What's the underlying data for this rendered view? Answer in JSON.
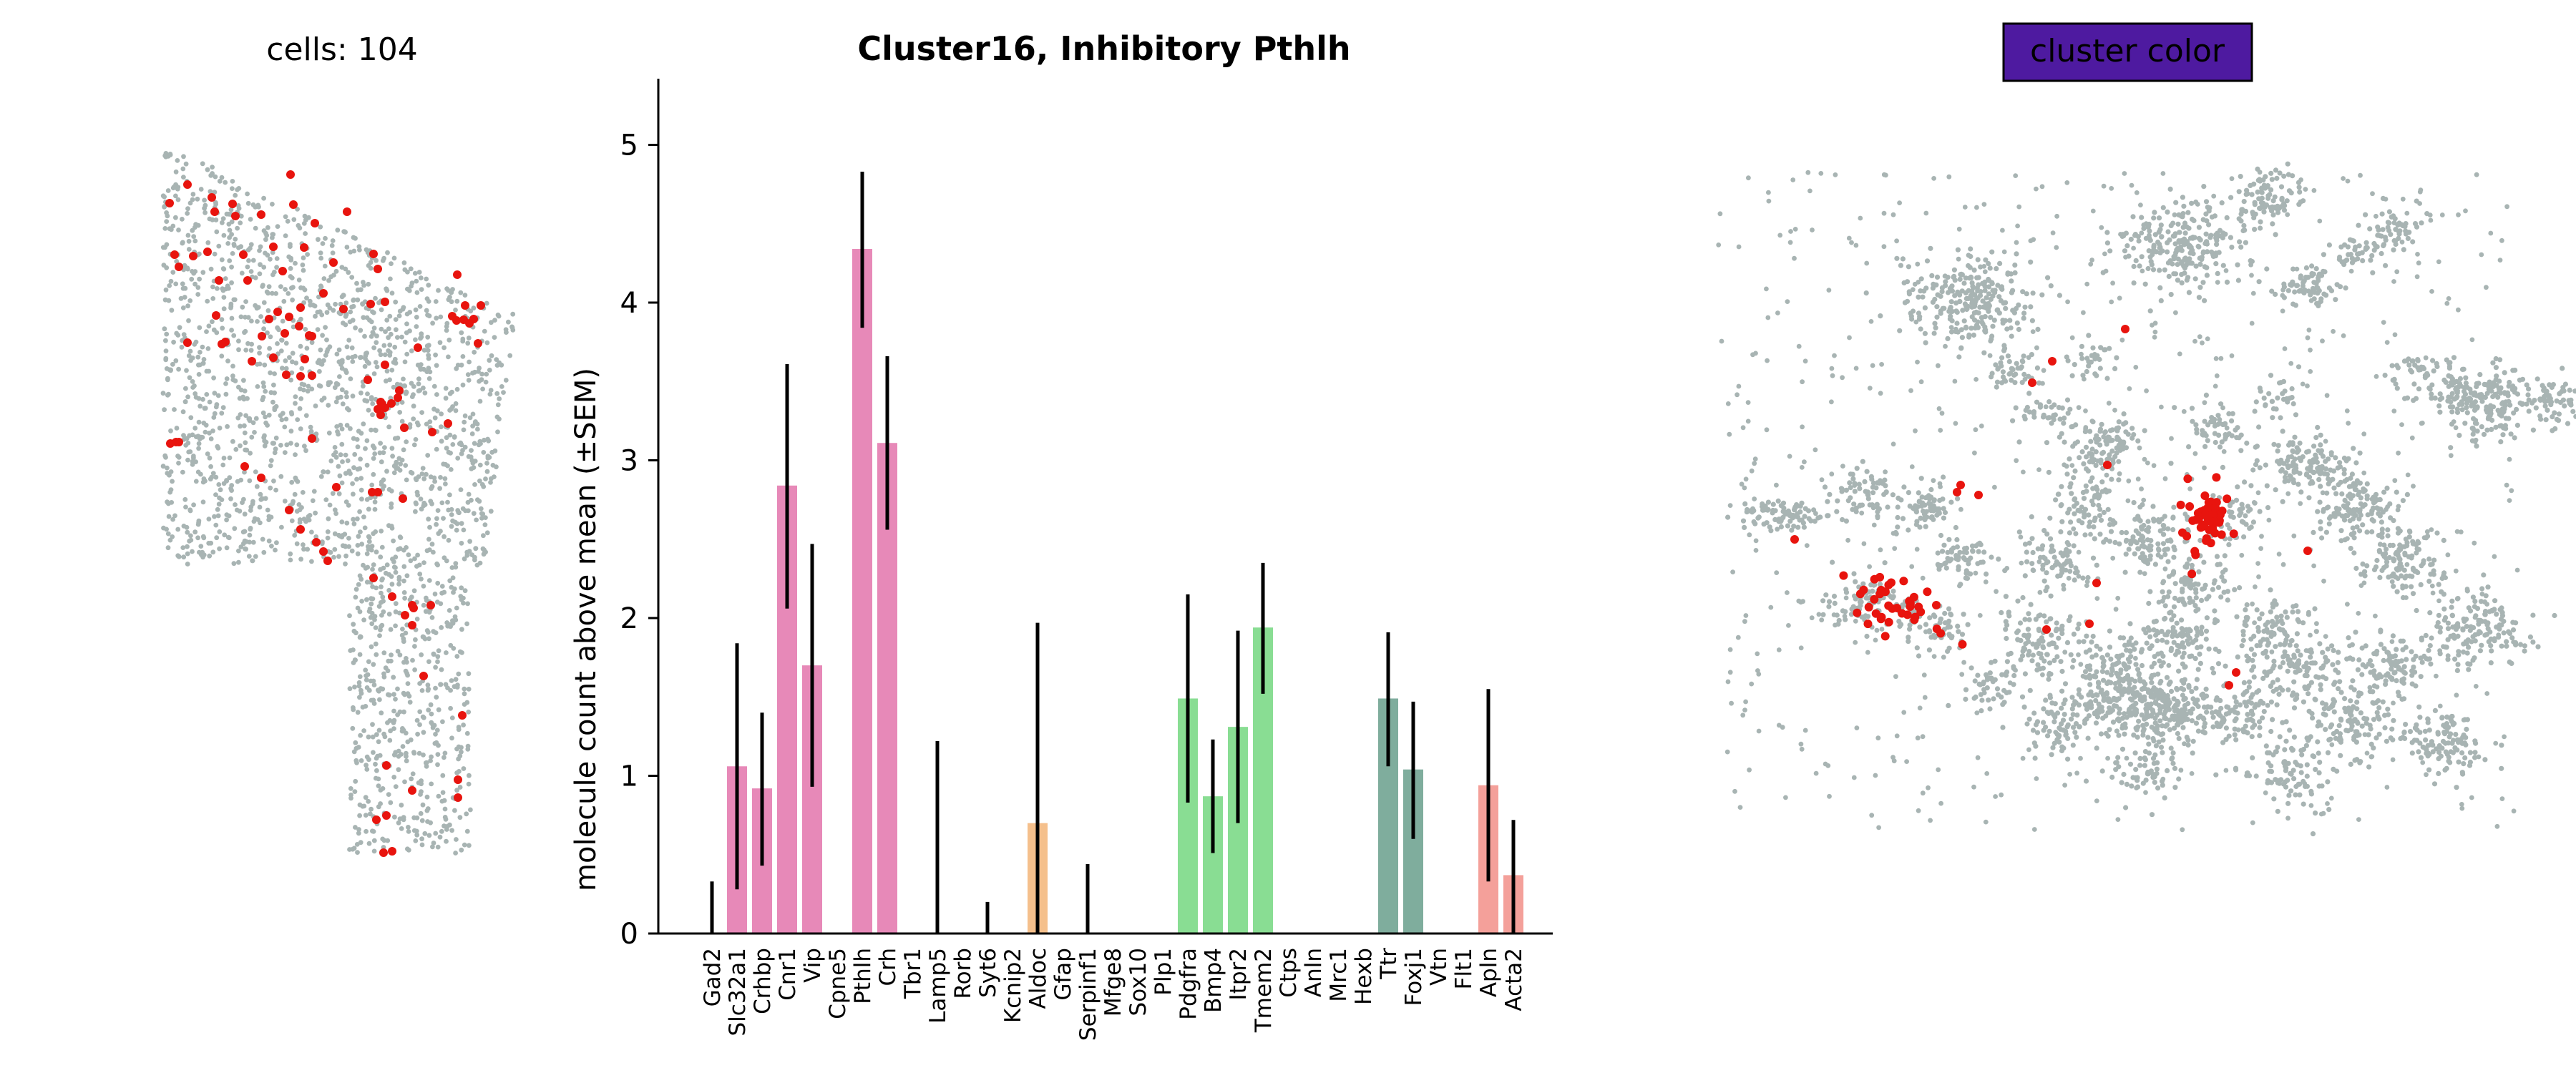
{
  "left_panel": {
    "title": "cells: 104",
    "point_color": "#a8b4b3",
    "highlight_color": "#e8140e"
  },
  "right_panel": {
    "badge": "cluster color",
    "badge_color": "#4e1aa0",
    "point_color": "#a8b4b3",
    "highlight_color": "#e8140e"
  },
  "chart_data": {
    "type": "bar",
    "title": "Cluster16, Inhibitory Pthlh",
    "xlabel": "",
    "ylabel": "molecule count above mean (±SEM)",
    "ylim": [
      0,
      5.35
    ],
    "yticks": [
      0,
      1,
      2,
      3,
      4,
      5
    ],
    "categories": [
      "Gad2",
      "Slc32a1",
      "Crhbp",
      "Cnr1",
      "Vip",
      "Cpne5",
      "Pthlh",
      "Crh",
      "Tbr1",
      "Lamp5",
      "Rorb",
      "Syt6",
      "Kcnip2",
      "Aldoc",
      "Gfap",
      "Serpinf1",
      "Mfge8",
      "Sox10",
      "Plp1",
      "Pdgfra",
      "Bmp4",
      "Itpr2",
      "Tmem2",
      "Ctps",
      "Anln",
      "Mrc1",
      "Hexb",
      "Ttr",
      "Foxj1",
      "Vtn",
      "Flt1",
      "Apln",
      "Acta2"
    ],
    "values": [
      0,
      1.06,
      0.92,
      2.84,
      1.7,
      0,
      4.34,
      3.11,
      0,
      0,
      0,
      0,
      0,
      0.7,
      0,
      0,
      0,
      0,
      0,
      1.49,
      0.87,
      1.31,
      1.94,
      0,
      0,
      0,
      0,
      1.49,
      1.04,
      0,
      0,
      0.94,
      0.37
    ],
    "err_low": [
      0,
      0.28,
      0.43,
      2.06,
      0.93,
      0,
      3.84,
      2.56,
      0,
      0,
      0,
      0,
      0,
      0,
      0,
      0,
      0,
      0,
      0,
      0.83,
      0.51,
      0.7,
      1.52,
      0,
      0,
      0,
      0,
      1.06,
      0.6,
      0,
      0,
      0.33,
      0
    ],
    "err_high": [
      0.33,
      1.84,
      1.4,
      3.61,
      2.47,
      0,
      4.83,
      3.66,
      0,
      1.22,
      0,
      0.2,
      0,
      1.97,
      0,
      0.44,
      0,
      0,
      0,
      2.15,
      1.23,
      1.92,
      2.35,
      0,
      0,
      0,
      0,
      1.91,
      1.47,
      0,
      0,
      1.55,
      0.72
    ],
    "bar_colors": [
      "#e789b8",
      "#e789b8",
      "#e789b8",
      "#e789b8",
      "#e789b8",
      "#e789b8",
      "#e789b8",
      "#e789b8",
      "#e789b8",
      "#f5c08c",
      "#f5c08c",
      "#f5c08c",
      "#f5c08c",
      "#f5c08c",
      "#f5c08c",
      "#f5c08c",
      "#f5c08c",
      "#89dd93",
      "#89dd93",
      "#89dd93",
      "#89dd93",
      "#89dd93",
      "#89dd93",
      "#89dd93",
      "#89dd93",
      "#89dd93",
      "#89dd93",
      "#7fad9d",
      "#7fad9d",
      "#e3f08b",
      "#f4a09a",
      "#f4a09a",
      "#f4a09a"
    ],
    "grid": false
  }
}
